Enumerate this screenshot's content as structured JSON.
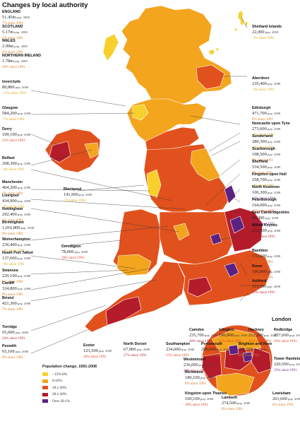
{
  "title": "Changes by local authority",
  "london_heading": "London",
  "legend": {
    "title": "Population change, 1991-2008",
    "items": [
      {
        "label": "- 12%-0%",
        "color": "#f7d02c"
      },
      {
        "label": "0-10%",
        "color": "#f3a51e"
      },
      {
        "label": "10.1-20%",
        "color": "#e1511d"
      },
      {
        "label": "20.1-30%",
        "color": "#b41c2b"
      },
      {
        "label": "Over 30.1%",
        "color": "#5c2183"
      }
    ]
  },
  "colors": {
    "pop_text": "#222222",
    "neg": "#d9a514",
    "low": "#e08a1c",
    "mid": "#df4a1e",
    "high": "#b71c2d",
    "top": "#6a2a8c"
  },
  "chart_data": {
    "type": "map",
    "title": "Changes by local authority",
    "legend_title": "Population change, 1991-2008",
    "bins": [
      "- 12%-0%",
      "0-10%",
      "10.1-20%",
      "20.1-30%",
      "Over 30.1%"
    ],
    "entries": [
      {
        "key": "england",
        "name": "ENGLAND",
        "pop": "51.45m",
        "pop_note": "pop. 2008",
        "change": "7%",
        "change_note": "since 1991",
        "bin": 1
      },
      {
        "key": "scotland",
        "name": "SCOTLAND",
        "pop": "5.17m",
        "pop_note": "pop. 2008",
        "change": "2%",
        "change_note": "since 1991",
        "bin": 1
      },
      {
        "key": "wales",
        "name": "WALES",
        "pop": "2.99m",
        "pop_note": "pop. 2008",
        "change": "4%",
        "change_note": "since 1991",
        "bin": 1
      },
      {
        "key": "ni",
        "name": "NORTHERN IRELAND",
        "pop": "1.78m",
        "pop_note": "pop. 2008",
        "change": "10%",
        "change_note": "since 1991",
        "bin": 1
      },
      {
        "key": "inverclyde",
        "name": "Inverclyde",
        "pop": "80,800",
        "pop_note": "pop. 2008",
        "change": "-12%",
        "change_note": "since 1991",
        "bin": 0
      },
      {
        "key": "glasgow",
        "name": "Glasgow",
        "pop": "584,200",
        "pop_note": "pop. 2008",
        "change": "-7%",
        "change_note": "since 1991",
        "bin": 0
      },
      {
        "key": "derry",
        "name": "Derry",
        "pop": "109,100",
        "pop_note": "pop. 2008",
        "change": "12%",
        "change_note": "since 1991",
        "bin": 2
      },
      {
        "key": "belfast",
        "name": "Belfast",
        "pop": "268,300",
        "pop_note": "pop. 2008",
        "change": "-4%",
        "change_note": "since 1991",
        "bin": 0
      },
      {
        "key": "manchester",
        "name": "Manchester",
        "pop": "464,200",
        "pop_note": "pop. 2008",
        "change": "3%",
        "change_note": "since 1991",
        "bin": 1
      },
      {
        "key": "liverpool",
        "name": "Liverpool",
        "pop": "434,900",
        "pop_note": "pop. 2008",
        "change": "-9%",
        "change_note": "since 1991",
        "bin": 0
      },
      {
        "key": "nottingham",
        "name": "Nottingham",
        "pop": "292,400",
        "pop_note": "pop. 2008",
        "change": "5%",
        "change_note": "since 1991",
        "bin": 1
      },
      {
        "key": "birmingham",
        "name": "Birmingham",
        "pop": "1,016,800",
        "pop_note": "pop. 2008",
        "change": "0%",
        "change_note": "since 1991",
        "bin": 1
      },
      {
        "key": "wolverhampton",
        "name": "Wolverhampton",
        "pop": "236,400",
        "pop_note": "pop. 2008",
        "change": "-4%",
        "change_note": "since 1991",
        "bin": 0
      },
      {
        "key": "neathporttalbot",
        "name": "Neath Port Talbot",
        "pop": "137,600",
        "pop_note": "pop. 2008",
        "change": "-1%",
        "change_note": "since 1991",
        "bin": 0
      },
      {
        "key": "swansea",
        "name": "Swansea",
        "pop": "229,100",
        "pop_note": "pop. 2008",
        "change": "0%",
        "change_note": "since 1991",
        "bin": 1
      },
      {
        "key": "cardiff",
        "name": "Cardiff",
        "pop": "324,800",
        "pop_note": "pop. 2008",
        "change": "9%",
        "change_note": "since 1991",
        "bin": 1
      },
      {
        "key": "bristol",
        "name": "Bristol",
        "pop": "421,300",
        "pop_note": "pop. 2008",
        "change": "7%",
        "change_note": "since 1991",
        "bin": 1
      },
      {
        "key": "torridge",
        "name": "Torridge",
        "pop": "65,600",
        "pop_note": "pop. 2008",
        "change": "24%",
        "change_note": "since 1991",
        "bin": 3
      },
      {
        "key": "penwith",
        "name": "Penwith",
        "pop": "65,100",
        "pop_note": "pop. 2008",
        "change": "9%",
        "change_note": "since 1991",
        "bin": 1
      },
      {
        "key": "blackpool",
        "name": "Blackpool",
        "pop": "141,900",
        "pop_note": "pop. 2008",
        "change": "-5%",
        "change_note": "since 1991",
        "bin": 0
      },
      {
        "key": "ceredigion",
        "name": "Ceredigion",
        "pop": "78,000",
        "pop_note": "pop. 2008",
        "change": "18%",
        "change_note": "since 1991",
        "bin": 2
      },
      {
        "key": "exeter",
        "name": "Exeter",
        "pop": "123,500",
        "pop_note": "pop. 2008",
        "change": "18%",
        "change_note": "since 1991",
        "bin": 2
      },
      {
        "key": "northdorset",
        "name": "North Dorset",
        "pop": "67,900",
        "pop_note": "pop. 2008",
        "change": "27%",
        "change_note": "since 1991",
        "bin": 3
      },
      {
        "key": "southampton",
        "name": "Southampton",
        "pop": "234,600",
        "pop_note": "pop. 2008",
        "change": "15%",
        "change_note": "since 1991",
        "bin": 2
      },
      {
        "key": "portsmouth",
        "name": "Portsmouth",
        "pop": "200,000",
        "pop_note": "pop. 2008",
        "change": "7%",
        "change_note": "since 1991",
        "bin": 1
      },
      {
        "key": "brighton",
        "name": "Brighton and Hove",
        "pop": "256,600",
        "pop_note": "pop. 2008",
        "change": "6%",
        "change_note": "since 1991",
        "bin": 1
      },
      {
        "key": "shetland",
        "name": "Shetland Islands",
        "pop": "22,000",
        "pop_note": "pop. 2008",
        "change": "-2%",
        "change_note": "since 1991",
        "bin": 0
      },
      {
        "key": "aberdeen",
        "name": "Aberdeen",
        "pop": "210,400",
        "pop_note": "pop. 2008",
        "change": "-3%",
        "change_note": "since 1991",
        "bin": 0
      },
      {
        "key": "edinburgh",
        "name": "Edinburgh",
        "pop": "471,700",
        "pop_note": "pop. 2008",
        "change": "8%",
        "change_note": "since 1991",
        "bin": 1
      },
      {
        "key": "newcastle",
        "name": "Newcastle upon Tyne",
        "pop": "273,600",
        "pop_note": "pop. 2008",
        "change": "-4%",
        "change_note": "since 1991",
        "bin": 0
      },
      {
        "key": "sunderland",
        "name": "Sunderland",
        "pop": "280,300",
        "pop_note": "pop. 2008",
        "change": "-6%",
        "change_note": "since 1991",
        "bin": 0
      },
      {
        "key": "scarborough",
        "name": "Scarborough",
        "pop": "108,500",
        "pop_note": "pop. 2008",
        "change": "0%",
        "change_note": "since 1991",
        "bin": 1
      },
      {
        "key": "sheffield",
        "name": "Sheffield",
        "pop": "534,500",
        "pop_note": "pop. 2008",
        "change": "3%",
        "change_note": "since 1991",
        "bin": 1
      },
      {
        "key": "hull",
        "name": "Kingston upon Hull",
        "pop": "258,700",
        "pop_note": "pop. 2008",
        "change": "-3%",
        "change_note": "since 1991",
        "bin": 0
      },
      {
        "key": "northkesteven",
        "name": "North Kesteven",
        "pop": "106,300",
        "pop_note": "pop. 2008",
        "change": "33%",
        "change_note": "since 1991",
        "bin": 4
      },
      {
        "key": "peterborough",
        "name": "Peterborough",
        "pop": "164,000",
        "pop_note": "pop. 2008",
        "change": "12%",
        "change_note": "since 1991",
        "bin": 2
      },
      {
        "key": "eastcambs",
        "name": "East Cambridgeshire",
        "pop": "82,300",
        "pop_note": "pop. 2008",
        "change": "35%",
        "change_note": "since 1991",
        "bin": 4
      },
      {
        "key": "miltonkeynes",
        "name": "Milton Keynes",
        "pop": "232,200",
        "pop_note": "pop. 2008",
        "change": "30%",
        "change_note": "since 1991",
        "bin": 3
      },
      {
        "key": "basildon",
        "name": "Basildon",
        "pop": "172,600",
        "pop_note": "pop. 2008",
        "change": "7%",
        "change_note": "since 1991",
        "bin": 1
      },
      {
        "key": "dover",
        "name": "Dover",
        "pop": "106,900",
        "pop_note": "pop. 2008",
        "change": "2%",
        "change_note": "since 1991",
        "bin": 1
      },
      {
        "key": "ashford",
        "name": "Ashford",
        "pop": "113,500",
        "pop_note": "pop. 2008",
        "change": "22%",
        "change_note": "since 1991",
        "bin": 3
      },
      {
        "key": "camden",
        "name": "Camden",
        "pop": "235,700",
        "pop_note": "pop. 2008",
        "change": "30%",
        "change_note": "since 1991",
        "bin": 3
      },
      {
        "key": "islington",
        "name": "Islington",
        "pop": "190,900",
        "pop_note": "pop. 2008",
        "change": "11%",
        "change_note": "since 1991",
        "bin": 2
      },
      {
        "key": "hackney",
        "name": "Hackney",
        "pop": "212,200",
        "pop_note": "pop. 2008",
        "change": "15%",
        "change_note": "since 1991",
        "bin": 2
      },
      {
        "key": "redbridge",
        "name": "Redbridge",
        "pop": "257,600",
        "pop_note": "pop. 2008",
        "change": "16%",
        "change_note": "since 1991",
        "bin": 2
      },
      {
        "key": "westminster",
        "name": "Westminster",
        "pop": "236,000",
        "pop_note": "pop. 2008",
        "change": "28%",
        "change_note": "since 1991",
        "bin": 3
      },
      {
        "key": "towerhamlets",
        "name": "Tower Hamlets",
        "pop": "220,500",
        "pop_note": "pop. 2008",
        "change": "33%",
        "change_note": "since 1991",
        "bin": 4
      },
      {
        "key": "richmond",
        "name": "Richmond",
        "pop": "180,100",
        "pop_note": "pop. 2008",
        "change": "8%",
        "change_note": "since 1991",
        "bin": 1
      },
      {
        "key": "kingston",
        "name": "Kingston upon Thames",
        "pop": "160,100",
        "pop_note": "pop. 2008",
        "change": "18%",
        "change_note": "since 1991",
        "bin": 2
      },
      {
        "key": "lambeth",
        "name": "Lambeth",
        "pop": "274,500",
        "pop_note": "pop. 2008",
        "change": "8%",
        "change_note": "since 1991",
        "bin": 1
      },
      {
        "key": "lewisham",
        "name": "Lewisham",
        "pop": "261,600",
        "pop_note": "pop. 2008",
        "change": "8%",
        "change_note": "since 1991",
        "bin": 1
      }
    ]
  }
}
